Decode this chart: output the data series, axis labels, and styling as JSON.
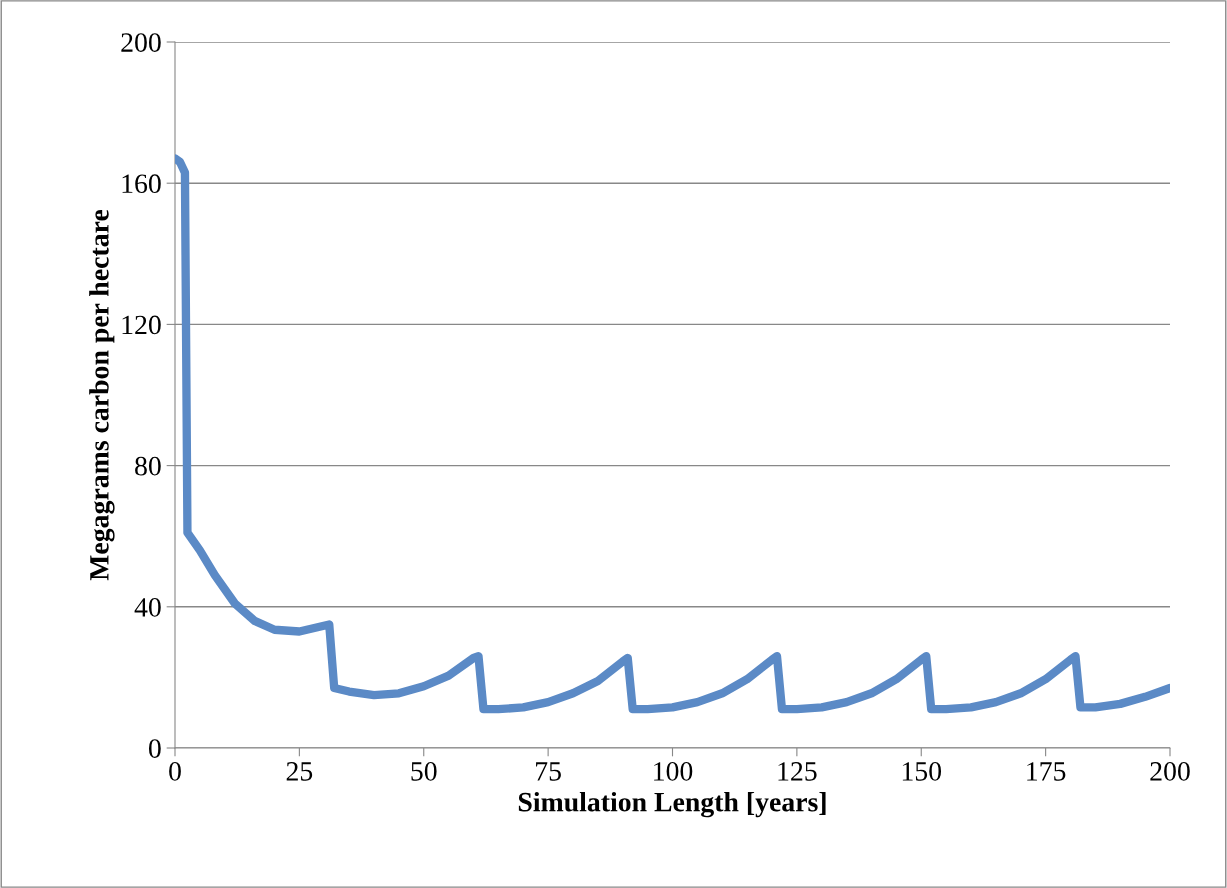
{
  "chart_data": {
    "type": "line",
    "xlabel": "Simulation Length [years]",
    "ylabel": "Megagrams carbon per hectare",
    "xlim": [
      0,
      200
    ],
    "xticks": [
      0,
      25,
      50,
      75,
      100,
      125,
      150,
      175,
      200
    ],
    "ylim": [
      0,
      200
    ],
    "yticks": [
      0,
      40,
      80,
      120,
      160,
      200
    ],
    "grid": "y",
    "marker": "none",
    "line_style": "solid",
    "series": [
      {
        "color": "#5b8ac6",
        "x": [
          0,
          1,
          2,
          2.5,
          5,
          8,
          12,
          16,
          20,
          25,
          28,
          31,
          32,
          35,
          40,
          45,
          50,
          55,
          60,
          61,
          62,
          65,
          70,
          75,
          80,
          85,
          90,
          91,
          92,
          95,
          100,
          105,
          110,
          115,
          120,
          121,
          122,
          125,
          130,
          135,
          140,
          145,
          150,
          151,
          152,
          155,
          160,
          165,
          170,
          175,
          180,
          181,
          182,
          185,
          190,
          195,
          200
        ],
        "values": [
          167,
          166,
          163,
          61,
          56,
          49,
          41,
          36,
          33.5,
          33,
          34,
          35,
          17,
          16,
          15,
          15.5,
          17.5,
          20.5,
          25.5,
          26,
          11,
          11,
          11.5,
          13,
          15.5,
          19,
          24.5,
          25.5,
          11,
          11,
          11.5,
          13,
          15.5,
          19.5,
          25,
          26,
          11,
          11,
          11.5,
          13,
          15.5,
          19.5,
          25,
          26,
          11,
          11,
          11.5,
          13,
          15.5,
          19.5,
          25,
          26,
          11.5,
          11.5,
          12.5,
          14.5,
          17
        ]
      }
    ]
  }
}
